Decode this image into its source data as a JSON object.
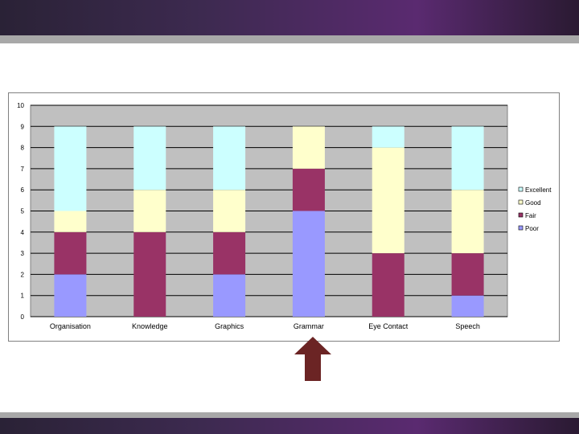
{
  "colors": {
    "poor": "#9999ff",
    "fair": "#993366",
    "good": "#ffffcc",
    "excellent": "#ccffff",
    "plot_bg": "#c0c0c0",
    "arrow": "#6b2424"
  },
  "chart_data": {
    "type": "bar",
    "stacked": true,
    "categories": [
      "Organisation",
      "Knowledge",
      "Graphics",
      "Grammar",
      "Eye Contact",
      "Speech"
    ],
    "series": [
      {
        "name": "Poor",
        "values": [
          2,
          0,
          2,
          5,
          0,
          1
        ]
      },
      {
        "name": "Fair",
        "values": [
          2,
          4,
          2,
          2,
          3,
          2
        ]
      },
      {
        "name": "Good",
        "values": [
          1,
          2,
          2,
          2,
          5,
          3
        ]
      },
      {
        "name": "Excellent",
        "values": [
          4,
          3,
          3,
          0,
          1,
          3
        ]
      }
    ],
    "ylim": [
      0,
      10
    ],
    "yticks": [
      "0",
      "1",
      "2",
      "3",
      "4",
      "5",
      "6",
      "7",
      "8",
      "9",
      "10"
    ],
    "legend": [
      "Excellent",
      "Good",
      "Fair",
      "Poor"
    ],
    "legend_position": "right",
    "grid": true,
    "title": "",
    "xlabel": "",
    "ylabel": ""
  },
  "annotation": {
    "points_to": "Grammar",
    "icon": "up-arrow-icon"
  }
}
